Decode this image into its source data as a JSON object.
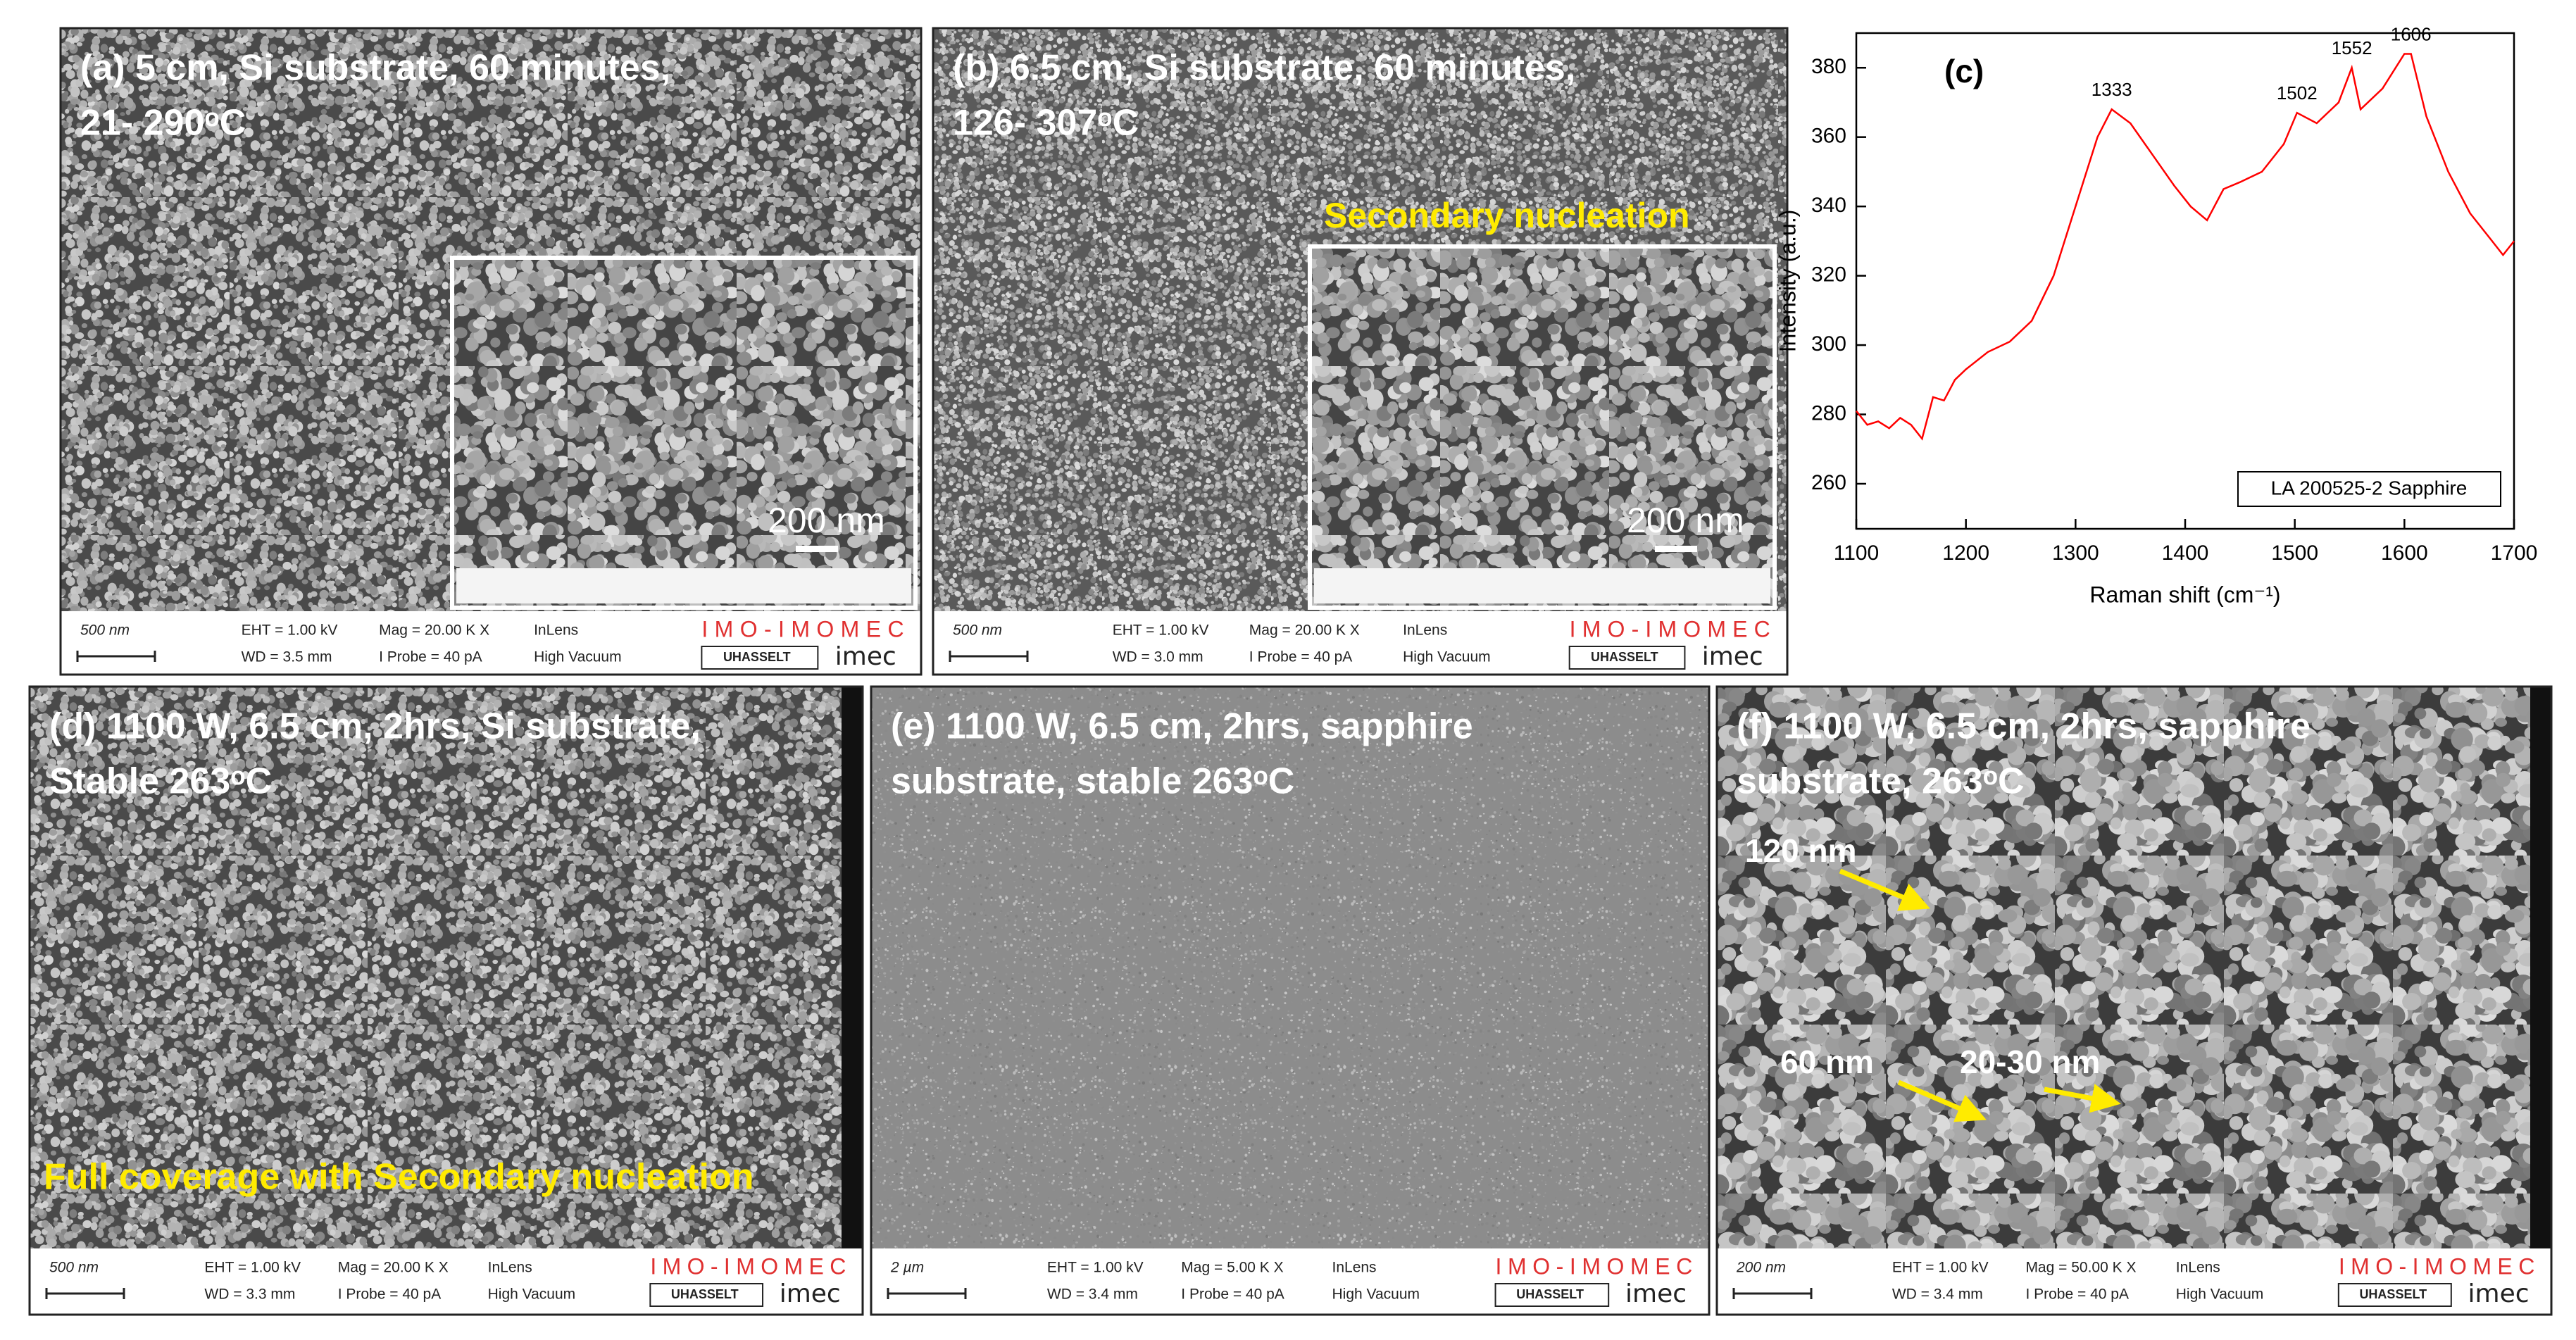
{
  "panels": [
    {
      "label": [
        "(a)  5 cm, Si substrate, 60 minutes,",
        "21- 290ᵒC"
      ],
      "annotations": [],
      "inset_scale": "200 nm",
      "info": {
        "scale": "500 nm",
        "eht": "EHT = 1.00 kV",
        "wd": "WD = 3.5 mm",
        "mag": "Mag = 20.00 K X",
        "probe": "I Probe = 40 pA",
        "detector": "InLens",
        "vacuum": "High Vacuum",
        "institute": "IMO-IMOMEC",
        "university": "UHASSELT",
        "company": "imec"
      }
    },
    {
      "label": [
        "(b) 6.5 cm, Si substrate, 60 minutes,",
        "126- 307ᵒC"
      ],
      "annotations": [
        "Secondary nucleation"
      ],
      "inset_scale": "200 nm",
      "info": {
        "scale": "500 nm",
        "eht": "EHT = 1.00 kV",
        "wd": "WD = 3.0 mm",
        "mag": "Mag = 20.00 K X",
        "probe": "I Probe = 40 pA",
        "detector": "InLens",
        "vacuum": "High Vacuum",
        "institute": "IMO-IMOMEC",
        "university": "UHASSELT",
        "company": "imec"
      }
    },
    {
      "label": [
        "(d) 1100 W, 6.5 cm, 2hrs, Si substrate,",
        "Stable 263ᵒC"
      ],
      "annotations": [
        "Full coverage with Secondary nucleation"
      ],
      "info": {
        "scale": "500 nm",
        "eht": "EHT = 1.00 kV",
        "wd": "WD = 3.3 mm",
        "mag": "Mag = 20.00 K X",
        "probe": "I Probe = 40 pA",
        "detector": "InLens",
        "vacuum": "High Vacuum",
        "institute": "IMO-IMOMEC",
        "university": "UHASSELT",
        "company": "imec"
      }
    },
    {
      "label": [
        "(e) 1100 W, 6.5 cm, 2hrs, sapphire",
        "substrate, stable 263ᵒC"
      ],
      "annotations": [],
      "info": {
        "scale": "2 µm",
        "eht": "EHT = 1.00 kV",
        "wd": "WD = 3.4 mm",
        "mag": "Mag = 5.00 K X",
        "probe": "I Probe = 40 pA",
        "detector": "InLens",
        "vacuum": "High Vacuum",
        "institute": "IMO-IMOMEC",
        "university": "UHASSELT",
        "company": "imec"
      }
    },
    {
      "label": [
        "(f) 1100 W, 6.5 cm, 2hrs, sapphire",
        "substrate, 263ᵒC"
      ],
      "annotations": [
        "120 nm",
        "60 nm",
        "20-30 nm"
      ],
      "info": {
        "scale": "200 nm",
        "eht": "EHT = 1.00 kV",
        "wd": "WD = 3.4 mm",
        "mag": "Mag = 50.00 K X",
        "probe": "I Probe = 40 pA",
        "detector": "InLens",
        "vacuum": "High Vacuum",
        "institute": "IMO-IMOMEC",
        "university": "UHASSELT",
        "company": "imec"
      }
    }
  ],
  "chart_data": {
    "type": "line",
    "label": "(c)",
    "x_label": "Raman shift (cm⁻¹)",
    "y_label": "Intensity (a.u.)",
    "x": [
      1100,
      1110,
      1120,
      1130,
      1140,
      1150,
      1160,
      1170,
      1180,
      1190,
      1200,
      1220,
      1240,
      1260,
      1280,
      1300,
      1320,
      1333,
      1350,
      1370,
      1390,
      1405,
      1420,
      1435,
      1450,
      1470,
      1490,
      1502,
      1520,
      1540,
      1552,
      1560,
      1580,
      1600,
      1606,
      1620,
      1640,
      1660,
      1680,
      1690,
      1700
    ],
    "series": [
      {
        "name": "LA 200525-2 Sapphire",
        "color": "#ff0000",
        "values": [
          281,
          277,
          278,
          276,
          279,
          277,
          273,
          285,
          284,
          290,
          293,
          298,
          301,
          307,
          320,
          340,
          360,
          368,
          364,
          355,
          346,
          340,
          336,
          345,
          347,
          350,
          358,
          367,
          364,
          370,
          380,
          368,
          374,
          384,
          384,
          366,
          350,
          338,
          330,
          326,
          330
        ]
      }
    ],
    "peaks": [
      {
        "x": 1333,
        "y": 368
      },
      {
        "x": 1502,
        "y": 367
      },
      {
        "x": 1552,
        "y": 380
      },
      {
        "x": 1606,
        "y": 384
      }
    ],
    "xlim": [
      1100,
      1700
    ],
    "xticks": [
      1100,
      1200,
      1300,
      1400,
      1500,
      1600,
      1700
    ],
    "ylim": [
      247,
      390
    ],
    "yticks": [
      260,
      280,
      300,
      320,
      340,
      360,
      380
    ]
  }
}
